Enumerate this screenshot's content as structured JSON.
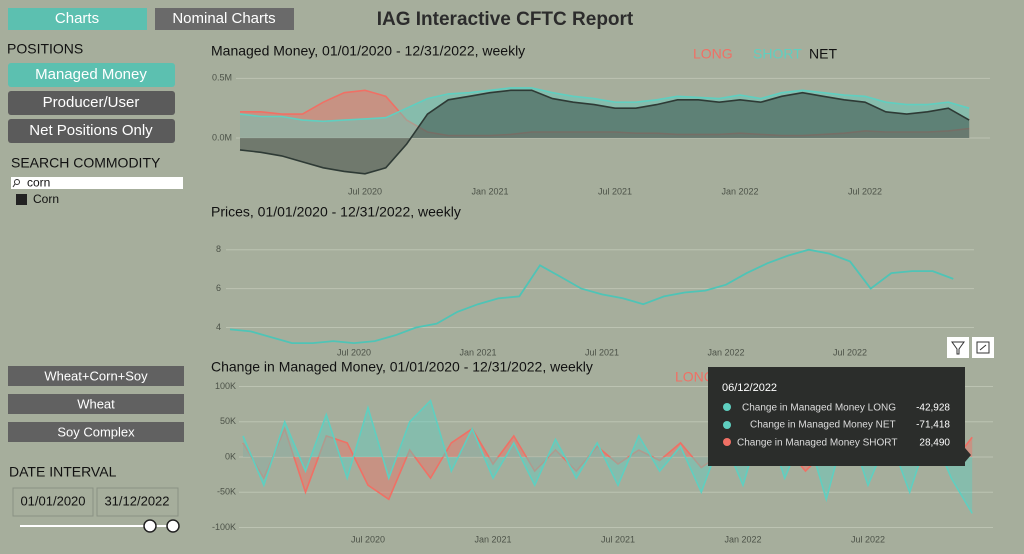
{
  "header": {
    "title": "IAG Interactive CFTC Report",
    "tabs": [
      "Charts",
      "Nominal Charts"
    ]
  },
  "sidebar": {
    "positions_label": "POSITIONS",
    "positions": [
      "Managed Money",
      "Producer/User",
      "Net Positions Only"
    ],
    "search_label": "SEARCH COMMODITY",
    "search_query": "corn",
    "commodities": [
      "Corn"
    ],
    "groups": [
      "Wheat+Corn+Soy",
      "Wheat",
      "Soy Complex"
    ],
    "date_label": "DATE INTERVAL",
    "date_from": "01/01/2020",
    "date_to": "31/12/2022"
  },
  "tooltip": {
    "date": "06/12/2022",
    "rows": [
      {
        "label": "Change in Managed Money LONG",
        "value": "-42,928"
      },
      {
        "label": "Change in Managed Money NET",
        "value": "-71,418"
      },
      {
        "label": "Change in Managed Money SHORT",
        "value": "28,490"
      }
    ]
  },
  "chart_data": [
    {
      "type": "area",
      "title": "Managed Money, 01/01/2020 - 12/31/2022, weekly",
      "x": [
        "2020-01",
        "2020-02",
        "2020-03",
        "2020-04",
        "2020-05",
        "2020-06",
        "2020-07",
        "2020-08",
        "2020-09",
        "2020-10",
        "2020-11",
        "2020-12",
        "2021-01",
        "2021-02",
        "2021-03",
        "2021-04",
        "2021-05",
        "2021-06",
        "2021-07",
        "2021-08",
        "2021-09",
        "2021-10",
        "2021-11",
        "2021-12",
        "2022-01",
        "2022-02",
        "2022-03",
        "2022-04",
        "2022-05",
        "2022-06",
        "2022-07",
        "2022-08",
        "2022-09",
        "2022-10",
        "2022-11",
        "2022-12"
      ],
      "xlim": [
        "2020-01",
        "2023-01"
      ],
      "xticks": [
        {
          "value": "2020-07",
          "label": "Jul 2020"
        },
        {
          "value": "2021-01",
          "label": "Jan 2021"
        },
        {
          "value": "2021-07",
          "label": "Jul 2021"
        },
        {
          "value": "2022-01",
          "label": "Jan 2022"
        },
        {
          "value": "2022-07",
          "label": "Jul 2022"
        }
      ],
      "ylim": [
        -310000,
        570000
      ],
      "yticks": [
        {
          "value": 0,
          "label": "0.0M"
        },
        {
          "value": 500000,
          "label": "0.5M"
        }
      ],
      "grid": true,
      "series": [
        {
          "name": "LONG",
          "color": "#f07065",
          "values": [
            220000,
            220000,
            200000,
            200000,
            300000,
            380000,
            400000,
            350000,
            150000,
            50000,
            20000,
            20000,
            20000,
            30000,
            50000,
            50000,
            50000,
            50000,
            50000,
            40000,
            40000,
            30000,
            30000,
            30000,
            40000,
            30000,
            20000,
            20000,
            30000,
            40000,
            60000,
            50000,
            50000,
            50000,
            60000,
            80000
          ]
        },
        {
          "name": "SHORT",
          "color": "#5fcfc0",
          "values": [
            200000,
            180000,
            180000,
            150000,
            140000,
            150000,
            160000,
            170000,
            250000,
            330000,
            370000,
            380000,
            400000,
            420000,
            420000,
            380000,
            350000,
            330000,
            300000,
            300000,
            320000,
            350000,
            340000,
            330000,
            360000,
            330000,
            380000,
            400000,
            380000,
            360000,
            350000,
            300000,
            280000,
            280000,
            300000,
            250000
          ]
        },
        {
          "name": "NET",
          "color": "#2e3a35",
          "values": [
            -100000,
            -120000,
            -150000,
            -200000,
            -250000,
            -280000,
            -300000,
            -250000,
            -50000,
            200000,
            320000,
            350000,
            380000,
            400000,
            400000,
            330000,
            300000,
            280000,
            250000,
            250000,
            280000,
            320000,
            320000,
            300000,
            320000,
            300000,
            350000,
            380000,
            350000,
            320000,
            300000,
            220000,
            200000,
            220000,
            250000,
            150000
          ]
        }
      ]
    },
    {
      "type": "line",
      "title": "Prices, 01/01/2020 - 12/31/2022, weekly",
      "x": [
        "2020-01",
        "2020-02",
        "2020-03",
        "2020-04",
        "2020-05",
        "2020-06",
        "2020-07",
        "2020-08",
        "2020-09",
        "2020-10",
        "2020-11",
        "2020-12",
        "2021-01",
        "2021-02",
        "2021-03",
        "2021-04",
        "2021-05",
        "2021-06",
        "2021-07",
        "2021-08",
        "2021-09",
        "2021-10",
        "2021-11",
        "2021-12",
        "2022-01",
        "2022-02",
        "2022-03",
        "2022-04",
        "2022-05",
        "2022-06",
        "2022-07",
        "2022-08",
        "2022-09",
        "2022-10",
        "2022-11",
        "2022-12"
      ],
      "xlim": [
        "2020-01",
        "2023-01"
      ],
      "xticks": [
        {
          "value": "2020-07",
          "label": "Jul 2020"
        },
        {
          "value": "2021-01",
          "label": "Jan 2021"
        },
        {
          "value": "2021-07",
          "label": "Jul 2021"
        },
        {
          "value": "2022-01",
          "label": "Jan 2022"
        },
        {
          "value": "2022-07",
          "label": "Jul 2022"
        }
      ],
      "ylim": [
        3.1,
        8.5
      ],
      "yticks": [
        4,
        6,
        8
      ],
      "grid": true,
      "series": [
        {
          "name": "Price",
          "color": "#4fc4b6",
          "values": [
            3.9,
            3.8,
            3.5,
            3.2,
            3.2,
            3.3,
            3.2,
            3.3,
            3.6,
            4.0,
            4.2,
            4.8,
            5.2,
            5.5,
            5.6,
            7.2,
            6.6,
            6.0,
            5.7,
            5.5,
            5.2,
            5.6,
            5.8,
            5.9,
            6.2,
            6.8,
            7.3,
            7.7,
            8.0,
            7.8,
            7.4,
            6.0,
            6.8,
            6.9,
            6.9,
            6.5
          ]
        }
      ]
    },
    {
      "type": "area",
      "title": "Change in Managed Money, 01/01/2020 - 12/31/2022, weekly",
      "x": [
        "2020-01",
        "2020-02",
        "2020-03",
        "2020-04",
        "2020-05",
        "2020-06",
        "2020-07",
        "2020-08",
        "2020-09",
        "2020-10",
        "2020-11",
        "2020-12",
        "2021-01",
        "2021-02",
        "2021-03",
        "2021-04",
        "2021-05",
        "2021-06",
        "2021-07",
        "2021-08",
        "2021-09",
        "2021-10",
        "2021-11",
        "2021-12",
        "2022-01",
        "2022-02",
        "2022-03",
        "2022-04",
        "2022-05",
        "2022-06",
        "2022-07",
        "2022-08",
        "2022-09",
        "2022-10",
        "2022-11",
        "2022-12"
      ],
      "xlim": [
        "2020-01",
        "2023-01"
      ],
      "xticks": [
        {
          "value": "2020-07",
          "label": "Jul 2020"
        },
        {
          "value": "2021-01",
          "label": "Jan 2021"
        },
        {
          "value": "2021-07",
          "label": "Jul 2021"
        },
        {
          "value": "2022-01",
          "label": "Jan 2022"
        },
        {
          "value": "2022-07",
          "label": "Jul 2022"
        }
      ],
      "ylim": [
        -105000,
        105000
      ],
      "yticks": [
        {
          "value": 100000,
          "label": "100K"
        },
        {
          "value": 50000,
          "label": "50K"
        },
        {
          "value": 0,
          "label": "0K"
        },
        {
          "value": -50000,
          "label": "-50K"
        },
        {
          "value": -100000,
          "label": "-100K"
        }
      ],
      "grid": true,
      "series": [
        {
          "name": "LONG",
          "color": "#f07065",
          "values": [
            20000,
            -30000,
            40000,
            -50000,
            30000,
            20000,
            -40000,
            -60000,
            10000,
            -30000,
            20000,
            40000,
            -10000,
            30000,
            -20000,
            10000,
            -20000,
            15000,
            -10000,
            10000,
            -5000,
            20000,
            -15000,
            5000,
            10000,
            -10000,
            15000,
            -20000,
            10000,
            -5000,
            15000,
            -10000,
            5000,
            20000,
            -10000,
            28000
          ]
        },
        {
          "name": "SHORT",
          "color": "#5fcfc0",
          "values": [
            30000,
            -40000,
            50000,
            -20000,
            60000,
            -30000,
            70000,
            -30000,
            50000,
            80000,
            -20000,
            40000,
            -30000,
            20000,
            -40000,
            25000,
            -30000,
            20000,
            -40000,
            30000,
            -20000,
            15000,
            -50000,
            30000,
            -40000,
            60000,
            -30000,
            40000,
            -60000,
            50000,
            -40000,
            30000,
            -50000,
            40000,
            -30000,
            -80000
          ]
        }
      ]
    }
  ]
}
